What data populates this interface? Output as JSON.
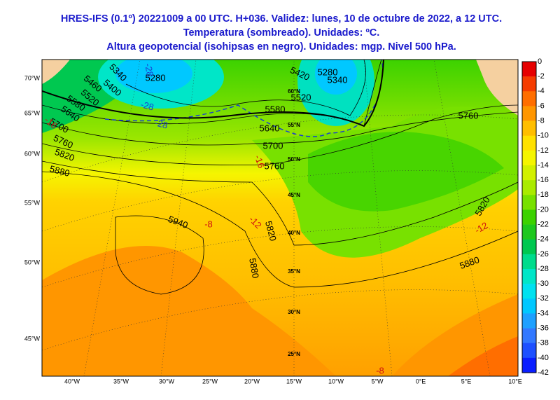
{
  "header": {
    "lines": [
      "HRES-IFS (0.1º) 20221009 a 00 UTC. H+036. Validez: lunes, 10 de octubre de 2022, a 12 UTC.",
      "Temperatura (sombreado). Unidades: ºC.",
      "Altura geopotencial (isohipsas en negro). Unidades: mgp. Nivel 500 hPa."
    ]
  },
  "colorbar": {
    "labels": [
      "0",
      "-2",
      "-4",
      "-6",
      "-8",
      "-10",
      "-12",
      "-14",
      "-16",
      "-18",
      "-20",
      "-22",
      "-24",
      "-26",
      "-28",
      "-30",
      "-32",
      "-34",
      "-36",
      "-38",
      "-40",
      "-42"
    ],
    "colors": [
      "#e60000",
      "#f53c00",
      "#ff6e00",
      "#ff9600",
      "#ffbe00",
      "#ffe100",
      "#f5f500",
      "#d2f000",
      "#aaeb00",
      "#78e100",
      "#3cd200",
      "#1ec81e",
      "#00c850",
      "#00dc8c",
      "#00e6c8",
      "#00e1f0",
      "#00c8ff",
      "#1ea0ff",
      "#3278ff",
      "#1e50ff",
      "#0a1eff"
    ]
  },
  "map": {
    "lon_labels": [
      "40°W",
      "35°W",
      "30°W",
      "25°W",
      "20°W",
      "15°W",
      "10°W",
      "5°W",
      "0°E",
      "5°E",
      "10°E"
    ],
    "left_labels": [
      "70°W",
      "65°W",
      "60°W",
      "55°W",
      "50°W",
      "45°W"
    ],
    "lat_labels": [
      "60°N",
      "55°N",
      "50°N",
      "45°N",
      "40°N",
      "35°N",
      "30°N",
      "25°N"
    ],
    "contour_labels": [
      "5280",
      "5280",
      "5340",
      "5420",
      "5520",
      "5580",
      "5640",
      "5700",
      "5760",
      "5760",
      "5820",
      "5880",
      "5940",
      "5820",
      "5880",
      "5880",
      "5820",
      "5760",
      "5700",
      "5640",
      "5580",
      "5520",
      "5460",
      "5400",
      "5340"
    ],
    "temp_labels": [
      "-8",
      "-12",
      "-12",
      "-8",
      "-16",
      "-16"
    ],
    "cold_labels": [
      "-28",
      "-28",
      "-28"
    ]
  }
}
